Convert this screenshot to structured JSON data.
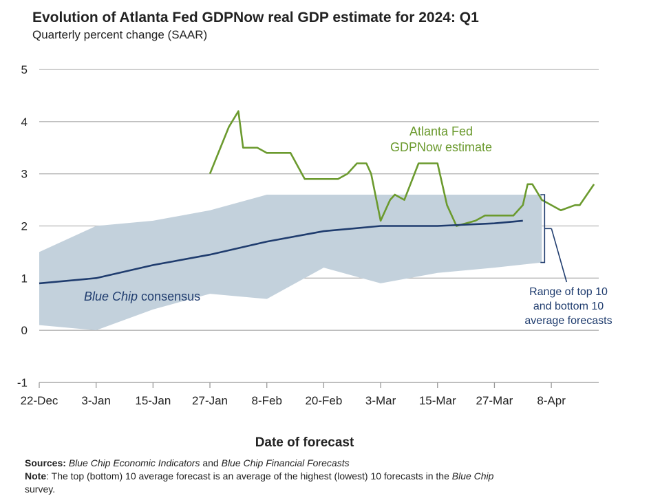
{
  "header": {
    "title": "Evolution of Atlanta Fed GDPNow real GDP estimate for 2024: Q1",
    "subtitle": "Quarterly percent change (SAAR)"
  },
  "footer": {
    "sources_label": "Sources:",
    "sources_italic_1": "Blue Chip Economic Indicators",
    "sources_mid": " and ",
    "sources_italic_2": "Blue Chip Financial Forecasts",
    "note_label": "Note",
    "note_text": ": The top (bottom) 10 average forecast is an average of the highest (lowest) 10 forecasts in the ",
    "note_italic": "Blue Chip",
    "note_end": "survey."
  },
  "chart_data": {
    "type": "line",
    "xlabel": "Date of forecast",
    "ylim": [
      -1,
      5
    ],
    "yticks": [
      "-1",
      "0",
      "1",
      "2",
      "3",
      "4",
      "5"
    ],
    "xlim_days": [
      0,
      118
    ],
    "xticks": [
      {
        "label": "22-Dec",
        "day": 0
      },
      {
        "label": "3-Jan",
        "day": 12
      },
      {
        "label": "15-Jan",
        "day": 24
      },
      {
        "label": "27-Jan",
        "day": 36
      },
      {
        "label": "8-Feb",
        "day": 48
      },
      {
        "label": "20-Feb",
        "day": 60
      },
      {
        "label": "3-Mar",
        "day": 72
      },
      {
        "label": "15-Mar",
        "day": 84
      },
      {
        "label": "27-Mar",
        "day": 96
      },
      {
        "label": "8-Apr",
        "day": 108
      }
    ],
    "grid": true,
    "colors": {
      "gdpnow": "#6b9a2e",
      "bluechip": "#1f3c6e",
      "range": "#c3d1dc",
      "grid": "#b5b5b5"
    },
    "series": [
      {
        "name": "Atlanta Fed GDPNow estimate",
        "label_lines": [
          "Atlanta Fed",
          "GDPNow estimate"
        ],
        "x": [
          36,
          40,
          42,
          43,
          46,
          48,
          52,
          53,
          56,
          58,
          60,
          63,
          65,
          67,
          69,
          70,
          72,
          73,
          74,
          75,
          77,
          80,
          81,
          82,
          84,
          86,
          88,
          92,
          94,
          96,
          100,
          102,
          103,
          104,
          106,
          110,
          113,
          114,
          117
        ],
        "y": [
          3.0,
          3.9,
          4.2,
          3.5,
          3.5,
          3.4,
          3.4,
          3.4,
          2.9,
          2.9,
          2.9,
          2.9,
          3.0,
          3.2,
          3.2,
          3.0,
          2.1,
          2.3,
          2.5,
          2.6,
          2.5,
          3.2,
          3.2,
          3.2,
          3.2,
          2.4,
          2.0,
          2.1,
          2.2,
          2.2,
          2.2,
          2.4,
          2.8,
          2.8,
          2.5,
          2.3,
          2.4,
          2.4,
          2.8
        ]
      },
      {
        "name": "Blue Chip consensus",
        "label_italic": "Blue Chip",
        "label_rest": " consensus",
        "x": [
          0,
          12,
          24,
          36,
          48,
          60,
          72,
          84,
          96,
          102
        ],
        "y": [
          0.9,
          1.0,
          1.25,
          1.45,
          1.7,
          1.9,
          2.0,
          2.0,
          2.05,
          2.1
        ]
      }
    ],
    "range_band": {
      "name": "Range of top 10 and bottom 10 average forecasts",
      "label_lines": [
        "Range of top 10",
        "and bottom 10",
        "average forecasts"
      ],
      "x": [
        0,
        12,
        24,
        36,
        48,
        60,
        72,
        84,
        96,
        106
      ],
      "upper": [
        1.5,
        2.0,
        2.1,
        2.3,
        2.6,
        2.6,
        2.6,
        2.6,
        2.6,
        2.6
      ],
      "lower": [
        0.1,
        0.0,
        0.4,
        0.7,
        0.6,
        1.2,
        0.9,
        1.1,
        1.2,
        1.3
      ]
    }
  }
}
